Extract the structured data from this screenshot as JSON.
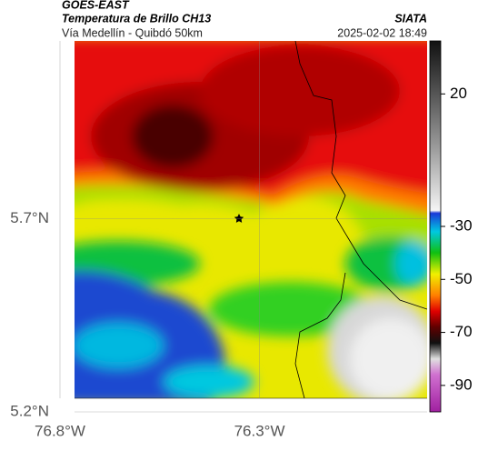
{
  "header": {
    "source": "GOES-EAST",
    "title": "Temperatura de Brillo CH13",
    "org": "SIATA",
    "subtitle": "Vía Medellín - Quibdó 50km",
    "timestamp": "2025-02-02 18:49"
  },
  "map": {
    "xlim": [
      -76.8,
      -75.88
    ],
    "ylim": [
      5.2,
      6.16
    ],
    "xticks": [
      {
        "value": -76.8,
        "label": "76.8°W"
      },
      {
        "value": -76.3,
        "label": "76.3°W"
      }
    ],
    "yticks": [
      {
        "value": 5.2,
        "label": "5.2°N"
      },
      {
        "value": 5.7,
        "label": "5.7°N"
      }
    ]
  },
  "colorbar": {
    "lim": [
      -100,
      40
    ],
    "ticks": [
      20,
      -30,
      -50,
      -70,
      -90
    ],
    "stops": [
      {
        "value": 40,
        "color": "#111111"
      },
      {
        "value": 0,
        "color": "#9a9a9a"
      },
      {
        "value": -24,
        "color": "#f4f4f4"
      },
      {
        "value": -25,
        "color": "#1a3ad8"
      },
      {
        "value": -32,
        "color": "#00c8e0"
      },
      {
        "value": -40,
        "color": "#10c010"
      },
      {
        "value": -48,
        "color": "#f0f000"
      },
      {
        "value": -56,
        "color": "#ff8000"
      },
      {
        "value": -62,
        "color": "#e00000"
      },
      {
        "value": -68,
        "color": "#600000"
      },
      {
        "value": -74,
        "color": "#101010"
      },
      {
        "value": -80,
        "color": "#e0e0e0"
      },
      {
        "value": -86,
        "color": "#d070d0"
      },
      {
        "value": -100,
        "color": "#a020a0"
      }
    ]
  }
}
